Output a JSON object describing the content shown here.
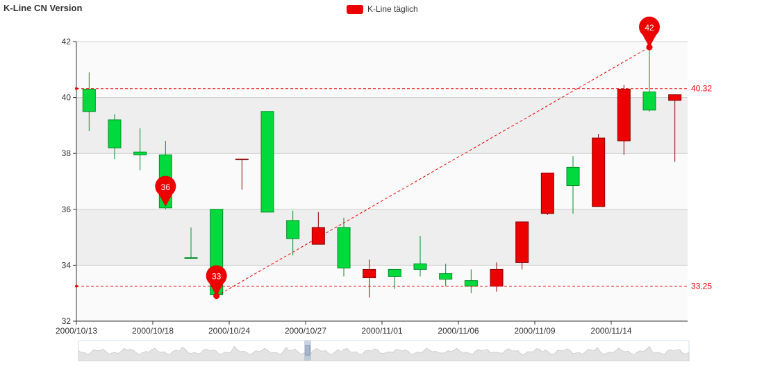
{
  "title": "K-Line CN Version",
  "legend": {
    "label": "K-Line täglich",
    "color": "#ec0000"
  },
  "colors": {
    "up": "#ec0000",
    "down": "#00da3c",
    "grid_band": "#eeeeee",
    "axis": "#333333"
  },
  "chart_data": {
    "type": "candlestick",
    "series_name": "K-Line täglich",
    "ylim": [
      32,
      42
    ],
    "y_ticks": [
      32,
      34,
      36,
      38,
      40,
      42
    ],
    "x_tick_labels": [
      "2000/10/13",
      "2000/10/18",
      "2000/10/24",
      "2000/10/27",
      "2000/11/01",
      "2000/11/06",
      "2000/11/09",
      "2000/11/14"
    ],
    "x_tick_indices": [
      0,
      3,
      6,
      9,
      12,
      15,
      18,
      21
    ],
    "split_area": true,
    "data_zoom": true,
    "candles": [
      {
        "open": 40.3,
        "close": 39.5,
        "low": 38.8,
        "high": 40.9
      },
      {
        "open": 39.2,
        "close": 38.2,
        "low": 37.8,
        "high": 39.4
      },
      {
        "open": 38.05,
        "close": 37.95,
        "low": 37.4,
        "high": 38.9
      },
      {
        "open": 37.95,
        "close": 36.05,
        "low": 36.0,
        "high": 38.45
      },
      {
        "open": 34.27,
        "close": 34.25,
        "low": 34.25,
        "high": 35.35
      },
      {
        "open": 36.0,
        "close": 32.95,
        "low": 32.9,
        "high": 36.0
      },
      {
        "open": 37.78,
        "close": 37.8,
        "low": 36.7,
        "high": 37.8
      },
      {
        "open": 39.5,
        "close": 35.9,
        "low": 35.9,
        "high": 39.5
      },
      {
        "open": 35.6,
        "close": 34.95,
        "low": 34.35,
        "high": 35.95
      },
      {
        "open": 34.75,
        "close": 35.35,
        "low": 34.75,
        "high": 35.9
      },
      {
        "open": 35.35,
        "close": 33.9,
        "low": 33.6,
        "high": 35.7
      },
      {
        "open": 33.55,
        "close": 33.85,
        "low": 32.85,
        "high": 34.2
      },
      {
        "open": 33.85,
        "close": 33.6,
        "low": 33.15,
        "high": 33.85
      },
      {
        "open": 34.05,
        "close": 33.85,
        "low": 33.6,
        "high": 35.05
      },
      {
        "open": 33.7,
        "close": 33.5,
        "low": 33.25,
        "high": 34.05
      },
      {
        "open": 33.45,
        "close": 33.25,
        "low": 33.0,
        "high": 33.85
      },
      {
        "open": 33.25,
        "close": 33.85,
        "low": 33.05,
        "high": 34.1
      },
      {
        "open": 34.1,
        "close": 35.55,
        "low": 33.85,
        "high": 35.55
      },
      {
        "open": 35.85,
        "close": 37.3,
        "low": 35.8,
        "high": 37.3
      },
      {
        "open": 37.5,
        "close": 36.85,
        "low": 35.85,
        "high": 37.9
      },
      {
        "open": 36.1,
        "close": 38.55,
        "low": 36.1,
        "high": 38.7
      },
      {
        "open": 38.45,
        "close": 40.3,
        "low": 37.95,
        "high": 40.45
      },
      {
        "open": 40.2,
        "close": 39.55,
        "low": 39.5,
        "high": 41.8
      },
      {
        "open": 39.9,
        "close": 40.1,
        "low": 37.7,
        "high": 40.1
      }
    ],
    "mark_points": [
      {
        "label": "42",
        "index": 22,
        "value": 41.8
      },
      {
        "label": "36",
        "index": 3,
        "value": 36.1
      },
      {
        "label": "33",
        "index": 5,
        "value": 32.9
      }
    ],
    "mark_lines_horizontal": [
      {
        "label": "40.32",
        "value": 40.32
      },
      {
        "label": "33.25",
        "value": 33.25
      }
    ],
    "mark_line_segment": {
      "from": {
        "index": 5,
        "value": 32.9
      },
      "to": {
        "index": 22,
        "value": 41.8
      }
    }
  }
}
